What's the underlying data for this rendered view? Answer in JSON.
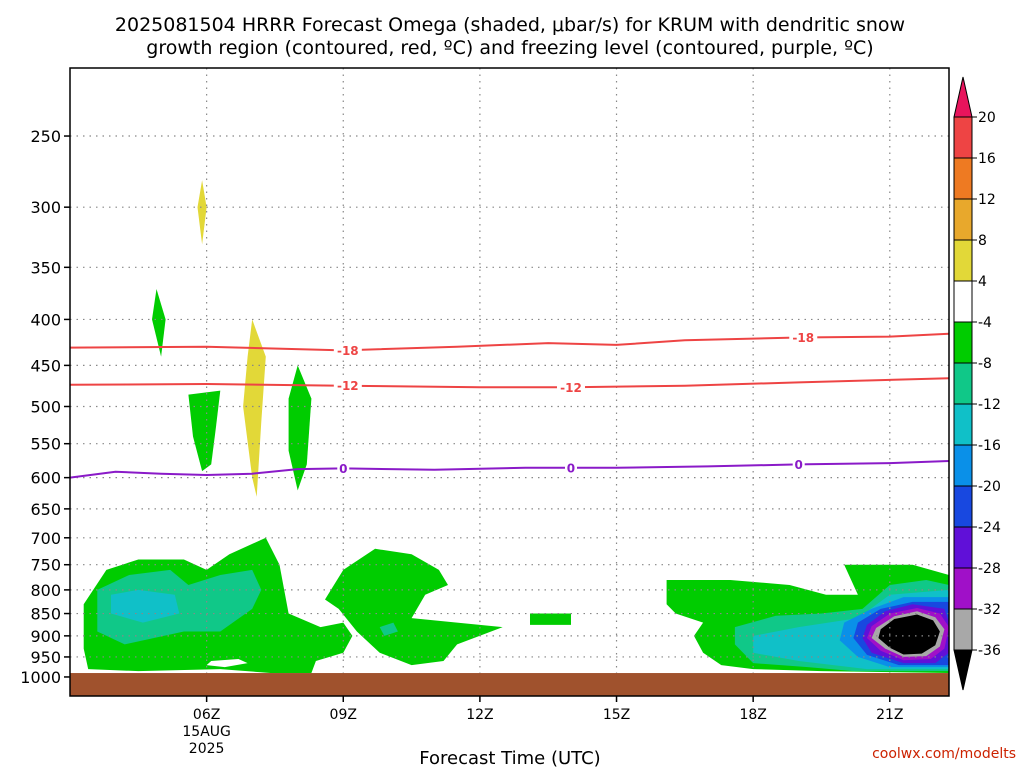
{
  "title_line1": "2025081504 HRRR Forecast Omega (shaded, μbar/s) for KRUM with dendritic snow",
  "title_line2": "growth region (contoured, red, ºC) and freezing level (contoured, purple, ºC)",
  "credit": "coolwx.com/modelts",
  "colors": {
    "dendritic_contour": "#ee4444",
    "freezing_contour": "#8a1ac8",
    "ground": "#a0522d",
    "grid": "#888888"
  },
  "chart_data": {
    "type": "heatmap",
    "title": "2025081504 HRRR Forecast Omega (shaded, μbar/s) for KRUM with dendritic snow growth region (contoured, red, ºC) and freezing level (contoured, purple, ºC)",
    "xlabel": "Forecast Time (UTC)",
    "ylabel": "",
    "y_scale": "log-pressure (inverted)",
    "xlim_hours_utc": [
      3.0,
      22.3
    ],
    "ylim_hpa": [
      1050,
      210
    ],
    "grid": "dotted",
    "x_ticks": [
      {
        "hour": 6,
        "label": "06Z",
        "sub1": "15AUG",
        "sub2": "2025"
      },
      {
        "hour": 9,
        "label": "09Z",
        "sub1": "",
        "sub2": ""
      },
      {
        "hour": 12,
        "label": "12Z",
        "sub1": "",
        "sub2": ""
      },
      {
        "hour": 15,
        "label": "15Z",
        "sub1": "",
        "sub2": ""
      },
      {
        "hour": 18,
        "label": "18Z",
        "sub1": "",
        "sub2": ""
      },
      {
        "hour": 21,
        "label": "21Z",
        "sub1": "",
        "sub2": ""
      }
    ],
    "y_ticks": [
      "250",
      "300",
      "350",
      "400",
      "450",
      "500",
      "550",
      "600",
      "650",
      "700",
      "750",
      "800",
      "850",
      "900",
      "950",
      "1000"
    ],
    "colorbar": {
      "labels": [
        "20",
        "16",
        "12",
        "8",
        "4",
        "-4",
        "-8",
        "-12",
        "-16",
        "-20",
        "-24",
        "-28",
        "-32",
        "-36"
      ],
      "colors": [
        "#e8145c",
        "#ee4444",
        "#ee7a22",
        "#e8a82c",
        "#e2d838",
        "#ffffff",
        "#00cc00",
        "#10c888",
        "#10c0c8",
        "#0a90e8",
        "#1848e0",
        "#6010d8",
        "#a010c8",
        "#a8a8a8",
        "#000000"
      ]
    },
    "contours": [
      {
        "name": "-18",
        "color": "#ee4444",
        "points": [
          [
            3.0,
            430
          ],
          [
            6.0,
            429
          ],
          [
            9.0,
            433
          ],
          [
            11.5,
            429
          ],
          [
            13.5,
            425
          ],
          [
            15.0,
            427
          ],
          [
            16.5,
            422
          ],
          [
            19.0,
            419
          ],
          [
            21.0,
            418
          ],
          [
            22.3,
            415
          ]
        ],
        "labels": [
          {
            "text": "-18",
            "at": [
              9.1,
              433
            ]
          },
          {
            "text": "-18",
            "at": [
              19.1,
              419
            ]
          }
        ]
      },
      {
        "name": "-12",
        "color": "#ee4444",
        "points": [
          [
            3.0,
            473
          ],
          [
            6.0,
            472
          ],
          [
            9.0,
            474
          ],
          [
            12.0,
            476
          ],
          [
            14.0,
            476
          ],
          [
            16.5,
            474
          ],
          [
            19.0,
            470
          ],
          [
            22.3,
            465
          ]
        ],
        "labels": [
          {
            "text": "-12",
            "at": [
              9.1,
              474
            ]
          },
          {
            "text": "-12",
            "at": [
              14.0,
              476
            ]
          }
        ]
      },
      {
        "name": "0",
        "color": "#8a1ac8",
        "points": [
          [
            3.0,
            600
          ],
          [
            4.0,
            591
          ],
          [
            5.0,
            594
          ],
          [
            6.0,
            596
          ],
          [
            7.0,
            594
          ],
          [
            8.0,
            587
          ],
          [
            9.0,
            586
          ],
          [
            11.0,
            588
          ],
          [
            13.0,
            585
          ],
          [
            15.0,
            585
          ],
          [
            17.0,
            583
          ],
          [
            19.0,
            580
          ],
          [
            21.0,
            578
          ],
          [
            22.3,
            575
          ]
        ],
        "labels": [
          {
            "text": "0",
            "at": [
              9.0,
              586
            ]
          },
          {
            "text": "0",
            "at": [
              14.0,
              585
            ]
          },
          {
            "text": "0",
            "at": [
              19.0,
              580
            ]
          }
        ]
      }
    ],
    "omega_regions": [
      {
        "level": "-8 to -4",
        "color": "#00cc00",
        "points": [
          [
            4.9,
            370
          ],
          [
            5.1,
            400
          ],
          [
            5.0,
            440
          ],
          [
            4.8,
            400
          ]
        ]
      },
      {
        "level": "-8 to -4",
        "color": "#00cc00",
        "points": [
          [
            5.6,
            485
          ],
          [
            6.3,
            480
          ],
          [
            6.2,
            530
          ],
          [
            6.1,
            580
          ],
          [
            5.9,
            590
          ],
          [
            5.7,
            540
          ]
        ]
      },
      {
        "level": "4 to 8",
        "color": "#e2d838",
        "points": [
          [
            5.9,
            280
          ],
          [
            6.0,
            300
          ],
          [
            5.9,
            330
          ],
          [
            5.8,
            300
          ]
        ]
      },
      {
        "level": "4 to 8",
        "color": "#e2d838",
        "points": [
          [
            7.0,
            400
          ],
          [
            7.3,
            440
          ],
          [
            7.2,
            520
          ],
          [
            7.1,
            630
          ],
          [
            7.0,
            600
          ],
          [
            6.8,
            500
          ],
          [
            6.9,
            440
          ]
        ]
      },
      {
        "level": "-8 to -4",
        "color": "#00cc00",
        "points": [
          [
            8.0,
            450
          ],
          [
            8.3,
            490
          ],
          [
            8.2,
            580
          ],
          [
            8.0,
            620
          ],
          [
            7.8,
            560
          ],
          [
            7.8,
            490
          ]
        ]
      },
      {
        "level": "-8 to -4",
        "color": "#00cc00",
        "points": [
          [
            3.3,
            830
          ],
          [
            3.8,
            760
          ],
          [
            4.5,
            740
          ],
          [
            5.5,
            740
          ],
          [
            6.0,
            760
          ],
          [
            6.5,
            730
          ],
          [
            7.3,
            700
          ],
          [
            7.6,
            750
          ],
          [
            7.8,
            850
          ],
          [
            8.5,
            880
          ],
          [
            9.0,
            870
          ],
          [
            9.2,
            900
          ],
          [
            9.0,
            940
          ],
          [
            8.4,
            960
          ],
          [
            8.3,
            990
          ],
          [
            7.4,
            990
          ],
          [
            6.3,
            980
          ],
          [
            4.5,
            985
          ],
          [
            3.4,
            980
          ],
          [
            3.3,
            930
          ]
        ]
      },
      {
        "level": "-12 to -8",
        "color": "#10c888",
        "points": [
          [
            3.6,
            800
          ],
          [
            4.3,
            770
          ],
          [
            5.2,
            760
          ],
          [
            5.6,
            790
          ],
          [
            6.3,
            770
          ],
          [
            7.0,
            760
          ],
          [
            7.2,
            800
          ],
          [
            7.0,
            840
          ],
          [
            6.3,
            890
          ],
          [
            5.5,
            890
          ],
          [
            4.2,
            920
          ],
          [
            3.6,
            890
          ]
        ]
      },
      {
        "level": "-16 to -12",
        "color": "#10c0c8",
        "points": [
          [
            3.9,
            810
          ],
          [
            4.5,
            800
          ],
          [
            5.3,
            810
          ],
          [
            5.4,
            850
          ],
          [
            4.6,
            870
          ],
          [
            3.9,
            850
          ]
        ]
      },
      {
        "level": "-8 to -4",
        "color": "#00cc00",
        "points": [
          [
            9.0,
            760
          ],
          [
            9.7,
            720
          ],
          [
            10.5,
            730
          ],
          [
            11.1,
            760
          ],
          [
            11.3,
            790
          ],
          [
            10.8,
            810
          ],
          [
            10.5,
            860
          ],
          [
            11.5,
            870
          ],
          [
            12.5,
            880
          ],
          [
            11.5,
            920
          ],
          [
            11.2,
            960
          ],
          [
            10.5,
            970
          ],
          [
            9.8,
            940
          ],
          [
            9.3,
            890
          ],
          [
            8.9,
            840
          ],
          [
            8.6,
            820
          ]
        ]
      },
      {
        "level": "-12 to -8",
        "color": "#10c888",
        "points": [
          [
            9.8,
            880
          ],
          [
            10.1,
            870
          ],
          [
            10.2,
            890
          ],
          [
            9.9,
            900
          ]
        ]
      },
      {
        "level": "-8 to -4",
        "color": "#00cc00",
        "points": [
          [
            13.1,
            850
          ],
          [
            14.0,
            850
          ],
          [
            14.0,
            875
          ],
          [
            13.1,
            875
          ]
        ]
      },
      {
        "level": "-8 to -4",
        "color": "#00cc00",
        "points": [
          [
            16.1,
            780
          ],
          [
            17.5,
            780
          ],
          [
            18.8,
            790
          ],
          [
            19.6,
            810
          ],
          [
            20.3,
            810
          ],
          [
            20.0,
            750
          ],
          [
            21.5,
            750
          ],
          [
            22.3,
            770
          ],
          [
            22.3,
            990
          ],
          [
            19.5,
            985
          ],
          [
            18.0,
            980
          ],
          [
            17.3,
            970
          ],
          [
            16.9,
            940
          ],
          [
            16.7,
            900
          ],
          [
            16.9,
            870
          ],
          [
            16.3,
            850
          ],
          [
            16.1,
            830
          ]
        ]
      },
      {
        "level": "-12 to -8",
        "color": "#10c888",
        "points": [
          [
            17.6,
            880
          ],
          [
            18.5,
            855
          ],
          [
            19.5,
            850
          ],
          [
            20.4,
            840
          ],
          [
            21.0,
            790
          ],
          [
            21.8,
            780
          ],
          [
            22.3,
            790
          ],
          [
            22.3,
            985
          ],
          [
            20.2,
            985
          ],
          [
            19.2,
            975
          ],
          [
            18.0,
            965
          ],
          [
            17.6,
            920
          ]
        ]
      },
      {
        "level": "-16 to -12",
        "color": "#10c0c8",
        "points": [
          [
            18.0,
            900
          ],
          [
            19.0,
            880
          ],
          [
            20.3,
            860
          ],
          [
            21.0,
            810
          ],
          [
            22.3,
            800
          ],
          [
            22.3,
            980
          ],
          [
            20.5,
            980
          ],
          [
            19.0,
            960
          ],
          [
            18.0,
            940
          ]
        ]
      },
      {
        "level": "-20 to -16",
        "color": "#0a90e8",
        "points": [
          [
            20.0,
            870
          ],
          [
            20.6,
            840
          ],
          [
            21.3,
            815
          ],
          [
            22.3,
            815
          ],
          [
            22.3,
            975
          ],
          [
            21.0,
            975
          ],
          [
            20.3,
            950
          ],
          [
            19.9,
            910
          ]
        ]
      },
      {
        "level": "-24 to -20",
        "color": "#1848e0",
        "points": [
          [
            20.3,
            870
          ],
          [
            20.8,
            840
          ],
          [
            21.5,
            825
          ],
          [
            22.3,
            825
          ],
          [
            22.3,
            970
          ],
          [
            21.2,
            970
          ],
          [
            20.5,
            945
          ],
          [
            20.2,
            905
          ]
        ]
      },
      {
        "level": "-28 to -24",
        "color": "#6010d8",
        "points": [
          [
            20.5,
            875
          ],
          [
            20.9,
            845
          ],
          [
            21.5,
            830
          ],
          [
            22.2,
            840
          ],
          [
            22.3,
            870
          ],
          [
            22.3,
            940
          ],
          [
            22.0,
            965
          ],
          [
            21.3,
            965
          ],
          [
            20.6,
            940
          ],
          [
            20.4,
            905
          ]
        ]
      },
      {
        "level": "-32 to -28",
        "color": "#a010c8",
        "points": [
          [
            20.6,
            878
          ],
          [
            21.0,
            850
          ],
          [
            21.6,
            838
          ],
          [
            22.1,
            850
          ],
          [
            22.3,
            880
          ],
          [
            22.2,
            930
          ],
          [
            21.9,
            955
          ],
          [
            21.3,
            958
          ],
          [
            20.8,
            935
          ],
          [
            20.5,
            905
          ]
        ]
      },
      {
        "level": "-36 to -32",
        "color": "#a8a8a8",
        "points": [
          [
            20.7,
            882
          ],
          [
            21.1,
            856
          ],
          [
            21.6,
            845
          ],
          [
            22.0,
            858
          ],
          [
            22.2,
            885
          ],
          [
            22.1,
            925
          ],
          [
            21.8,
            948
          ],
          [
            21.3,
            950
          ],
          [
            20.9,
            930
          ],
          [
            20.6,
            905
          ]
        ]
      },
      {
        "level": "< -36",
        "color": "#000000",
        "points": [
          [
            20.8,
            885
          ],
          [
            21.1,
            862
          ],
          [
            21.6,
            852
          ],
          [
            21.95,
            865
          ],
          [
            22.1,
            890
          ],
          [
            22.0,
            922
          ],
          [
            21.7,
            942
          ],
          [
            21.3,
            944
          ],
          [
            21.0,
            928
          ],
          [
            20.75,
            905
          ]
        ]
      },
      {
        "level": "-4 to 4",
        "color": "#ffffff",
        "points": [
          [
            6.1,
            960
          ],
          [
            6.7,
            955
          ],
          [
            6.9,
            965
          ],
          [
            6.4,
            975
          ],
          [
            6.0,
            970
          ]
        ]
      }
    ],
    "ground": {
      "color": "#a0522d",
      "top_hpa": 990
    }
  }
}
